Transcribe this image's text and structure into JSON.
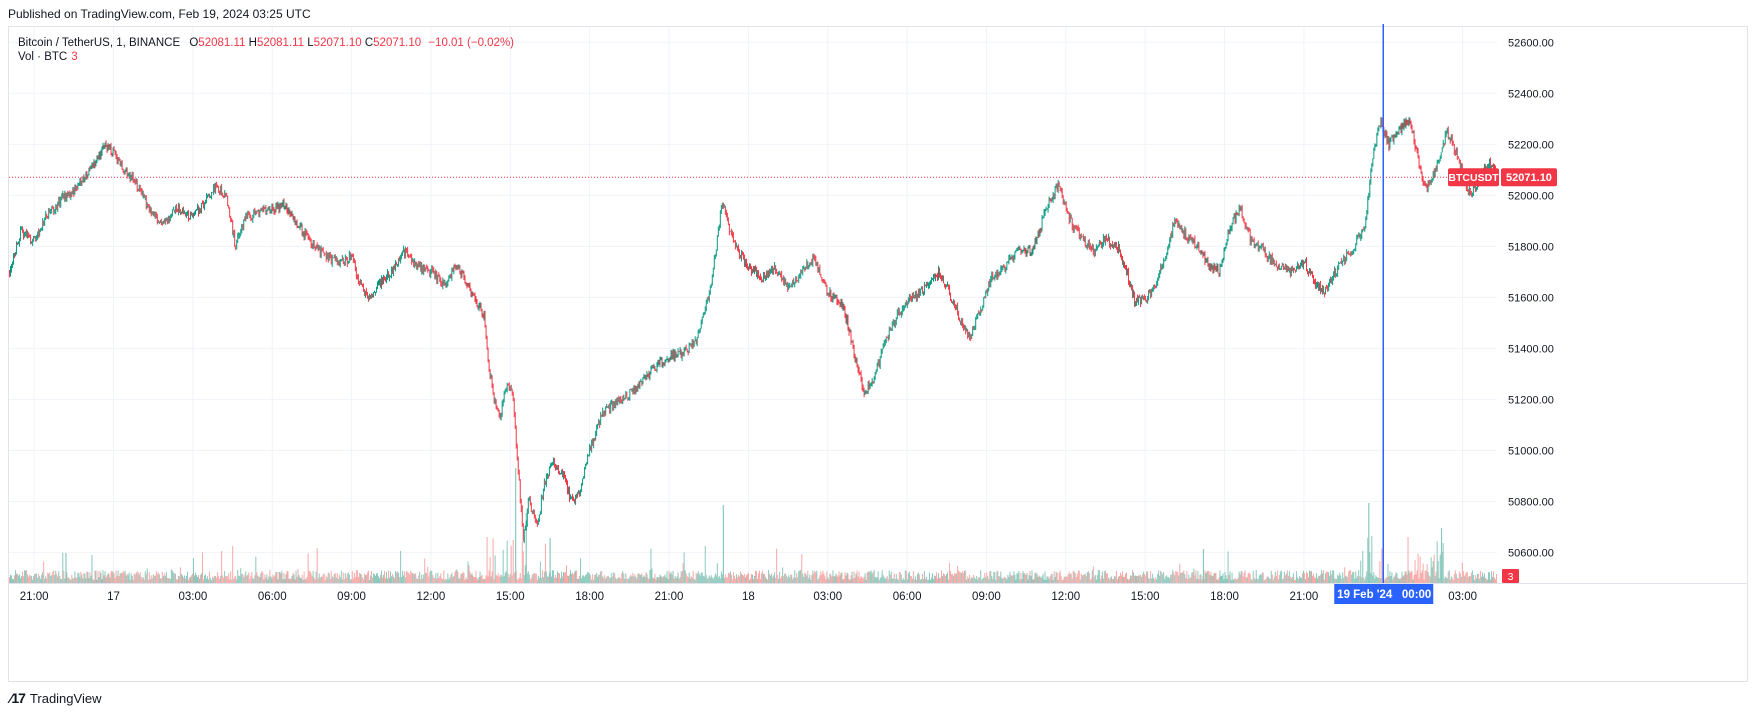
{
  "header": {
    "published": "Published on TradingView.com, Feb 19, 2024 03:25 UTC"
  },
  "legend": {
    "symbol": "Bitcoin / TetherUS, 1, BINANCE",
    "o_label": "O",
    "o_value": "52081.11",
    "h_label": "H",
    "h_value": "52081.11",
    "l_label": "L",
    "l_value": "52071.10",
    "c_label": "C",
    "c_value": "52071.10",
    "change": "−10.01 (−0.02%)",
    "vol_label": "Vol · BTC",
    "vol_value": "3"
  },
  "price_tag": {
    "symbol": "BTCUSDT",
    "value": "52071.10"
  },
  "crosshair_time_label": "19 Feb '24   00:00",
  "footer": {
    "brand": "TradingView",
    "icon": "tradingview-logo-icon"
  },
  "colors": {
    "up": "#089981",
    "down": "#f23645",
    "up_volume": "#8ac8bc",
    "down_volume": "#f7a9a7",
    "crosshair": "#2962ff",
    "price_line": "#f23645"
  },
  "chart_data": {
    "type": "candlestick",
    "interval": "1 minute",
    "y_axis": {
      "ticks": [
        50600,
        50800,
        51000,
        51200,
        51400,
        51600,
        51800,
        52000,
        52200,
        52400,
        52600
      ],
      "tick_labels": [
        "50600.00",
        "50800.00",
        "51000.00",
        "51200.00",
        "51400.00",
        "51600.00",
        "51800.00",
        "52000.00",
        "52200.00",
        "52400.00",
        "52600.00"
      ],
      "range": [
        50480,
        52660
      ]
    },
    "x_axis": {
      "tick_labels": [
        "21:00",
        "17",
        "03:00",
        "06:00",
        "09:00",
        "12:00",
        "15:00",
        "18:00",
        "21:00",
        "18",
        "03:00",
        "06:00",
        "09:00",
        "12:00",
        "15:00",
        "18:00",
        "21:00",
        "03:00"
      ],
      "tick_hours": [
        0,
        3,
        6,
        9,
        12,
        15,
        18,
        21,
        24,
        27,
        30,
        33,
        36,
        39,
        42,
        45,
        48,
        54
      ],
      "range_hours": [
        -0.95,
        55.3
      ],
      "start": "16 Feb 2024 21:00"
    },
    "price_path": [
      [
        -0.95,
        51700
      ],
      [
        -0.5,
        51860
      ],
      [
        0,
        51820
      ],
      [
        0.5,
        51920
      ],
      [
        1,
        51980
      ],
      [
        1.5,
        52020
      ],
      [
        2,
        52080
      ],
      [
        2.4,
        52140
      ],
      [
        2.7,
        52200
      ],
      [
        3,
        52170
      ],
      [
        3.4,
        52100
      ],
      [
        3.9,
        52040
      ],
      [
        4.4,
        51940
      ],
      [
        4.9,
        51880
      ],
      [
        5.4,
        51950
      ],
      [
        5.9,
        51920
      ],
      [
        6.4,
        51960
      ],
      [
        6.9,
        52040
      ],
      [
        7.3,
        51990
      ],
      [
        7.6,
        51800
      ],
      [
        8,
        51910
      ],
      [
        8.5,
        51930
      ],
      [
        9,
        51950
      ],
      [
        9.5,
        51960
      ],
      [
        10,
        51880
      ],
      [
        10.5,
        51810
      ],
      [
        11,
        51760
      ],
      [
        11.5,
        51730
      ],
      [
        12,
        51760
      ],
      [
        12.3,
        51650
      ],
      [
        12.7,
        51590
      ],
      [
        13,
        51650
      ],
      [
        13.5,
        51700
      ],
      [
        14,
        51780
      ],
      [
        14.5,
        51720
      ],
      [
        15,
        51700
      ],
      [
        15.5,
        51650
      ],
      [
        16,
        51730
      ],
      [
        16.5,
        51620
      ],
      [
        17,
        51530
      ],
      [
        17.2,
        51320
      ],
      [
        17.4,
        51200
      ],
      [
        17.6,
        51120
      ],
      [
        17.9,
        51270
      ],
      [
        18.1,
        51200
      ],
      [
        18.3,
        50920
      ],
      [
        18.5,
        50650
      ],
      [
        18.7,
        50800
      ],
      [
        19,
        50700
      ],
      [
        19.3,
        50870
      ],
      [
        19.6,
        50950
      ],
      [
        20,
        50900
      ],
      [
        20.3,
        50800
      ],
      [
        20.6,
        50830
      ],
      [
        21,
        51000
      ],
      [
        21.5,
        51150
      ],
      [
        22,
        51190
      ],
      [
        22.5,
        51220
      ],
      [
        23,
        51270
      ],
      [
        23.5,
        51330
      ],
      [
        24,
        51370
      ],
      [
        24.5,
        51380
      ],
      [
        25,
        51420
      ],
      [
        25.5,
        51600
      ],
      [
        25.8,
        51800
      ],
      [
        26,
        51990
      ],
      [
        26.3,
        51850
      ],
      [
        26.7,
        51760
      ],
      [
        27,
        51720
      ],
      [
        27.5,
        51680
      ],
      [
        28,
        51720
      ],
      [
        28.5,
        51640
      ],
      [
        29,
        51700
      ],
      [
        29.5,
        51760
      ],
      [
        30,
        51620
      ],
      [
        30.5,
        51580
      ],
      [
        30.8,
        51480
      ],
      [
        31,
        51370
      ],
      [
        31.4,
        51220
      ],
      [
        31.8,
        51300
      ],
      [
        32.2,
        51430
      ],
      [
        32.7,
        51540
      ],
      [
        33.2,
        51600
      ],
      [
        33.7,
        51640
      ],
      [
        34.2,
        51700
      ],
      [
        34.6,
        51620
      ],
      [
        35,
        51520
      ],
      [
        35.4,
        51440
      ],
      [
        35.8,
        51560
      ],
      [
        36.2,
        51680
      ],
      [
        36.7,
        51720
      ],
      [
        37.2,
        51780
      ],
      [
        37.7,
        51780
      ],
      [
        38,
        51860
      ],
      [
        38.3,
        51960
      ],
      [
        38.7,
        52040
      ],
      [
        39,
        51950
      ],
      [
        39.3,
        51870
      ],
      [
        39.7,
        51820
      ],
      [
        40.1,
        51780
      ],
      [
        40.5,
        51830
      ],
      [
        41,
        51790
      ],
      [
        41.3,
        51700
      ],
      [
        41.6,
        51590
      ],
      [
        42,
        51590
      ],
      [
        42.4,
        51650
      ],
      [
        42.8,
        51770
      ],
      [
        43.1,
        51900
      ],
      [
        43.5,
        51850
      ],
      [
        44,
        51800
      ],
      [
        44.4,
        51730
      ],
      [
        44.8,
        51700
      ],
      [
        45.2,
        51880
      ],
      [
        45.6,
        51950
      ],
      [
        46,
        51820
      ],
      [
        46.5,
        51780
      ],
      [
        47,
        51720
      ],
      [
        47.5,
        51700
      ],
      [
        48,
        51740
      ],
      [
        48.4,
        51660
      ],
      [
        48.8,
        51620
      ],
      [
        49.2,
        51700
      ],
      [
        49.6,
        51760
      ],
      [
        50,
        51820
      ],
      [
        50.3,
        51860
      ],
      [
        50.6,
        52150
      ],
      [
        50.9,
        52300
      ],
      [
        51.2,
        52200
      ],
      [
        51.6,
        52250
      ],
      [
        52,
        52300
      ],
      [
        52.3,
        52150
      ],
      [
        52.6,
        52020
      ],
      [
        53,
        52100
      ],
      [
        53.4,
        52250
      ],
      [
        53.7,
        52180
      ],
      [
        54,
        52080
      ],
      [
        54.3,
        52000
      ],
      [
        54.6,
        52060
      ],
      [
        55,
        52130
      ],
      [
        55.3,
        52071
      ]
    ],
    "last_price": 52071.1,
    "crosshair_time": "19 Feb 2024 00:00",
    "volume_last": 3
  }
}
